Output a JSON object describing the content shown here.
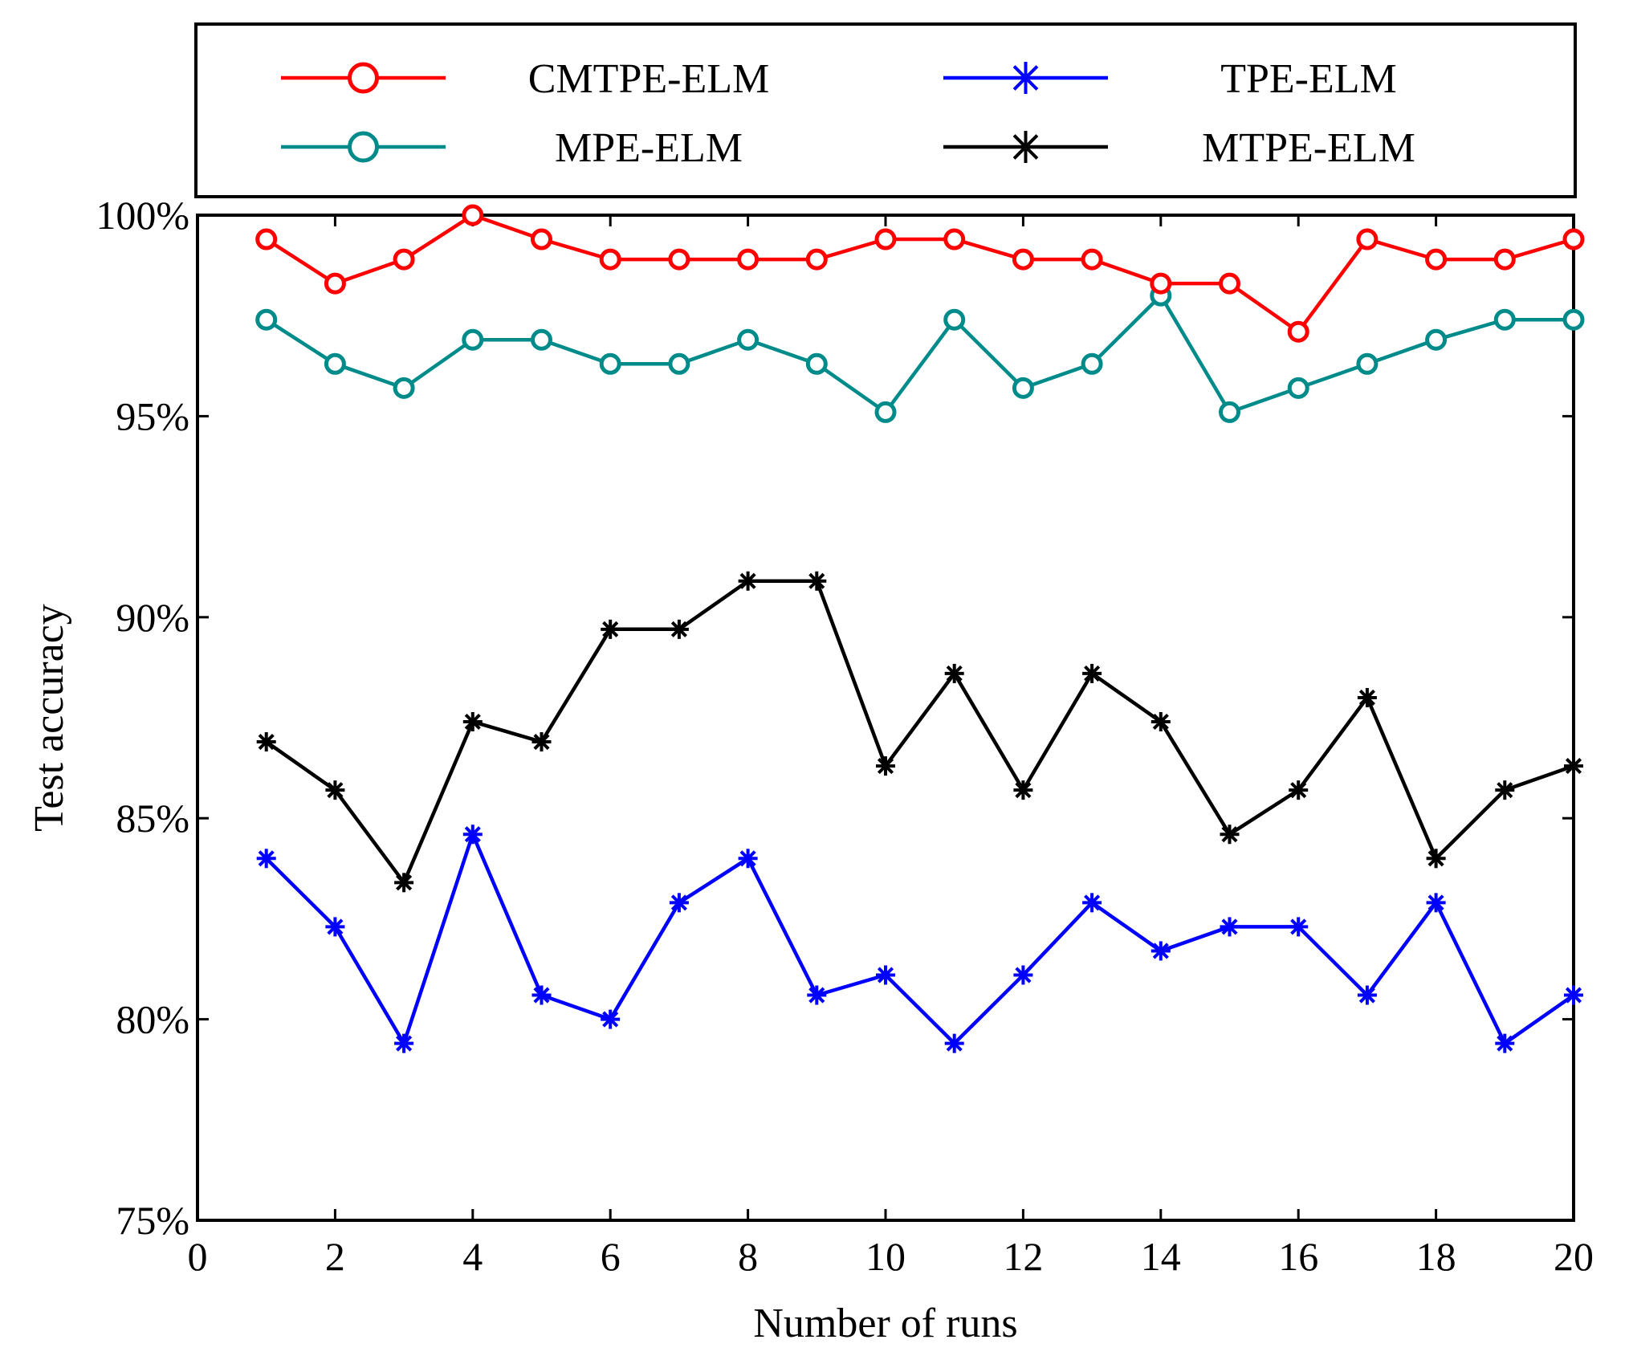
{
  "chart_data": {
    "type": "line",
    "title": "",
    "xlabel": "Number of runs",
    "ylabel": "Test accuracy",
    "xlim": [
      0,
      20
    ],
    "ylim": [
      75,
      100
    ],
    "xticks": [
      0,
      2,
      4,
      6,
      8,
      10,
      12,
      14,
      16,
      18,
      20
    ],
    "yticks": [
      75,
      80,
      85,
      90,
      95,
      100
    ],
    "xtick_labels": [
      "0",
      "2",
      "4",
      "6",
      "8",
      "10",
      "12",
      "14",
      "16",
      "18",
      "20"
    ],
    "ytick_labels": [
      "75%",
      "80%",
      "85%",
      "90%",
      "95%",
      "100%"
    ],
    "grid": false,
    "legend_position": "top",
    "x": [
      1,
      2,
      3,
      4,
      5,
      6,
      7,
      8,
      9,
      10,
      11,
      12,
      13,
      14,
      15,
      16,
      17,
      18,
      19,
      20
    ],
    "series": [
      {
        "name": "CMTPE-ELM",
        "color": "#ff0000",
        "marker": "circle",
        "values": [
          99.4,
          98.3,
          98.9,
          100.0,
          99.4,
          98.9,
          98.9,
          98.9,
          98.9,
          99.4,
          99.4,
          98.9,
          98.9,
          98.3,
          98.3,
          97.1,
          99.4,
          98.9,
          98.9,
          99.4
        ]
      },
      {
        "name": "TPE-ELM",
        "color": "#0000ff",
        "marker": "asterisk",
        "values": [
          84.0,
          82.3,
          79.4,
          84.6,
          80.6,
          80.0,
          82.9,
          84.0,
          80.6,
          81.1,
          79.4,
          81.1,
          82.9,
          81.7,
          82.3,
          82.3,
          80.6,
          82.9,
          79.4,
          80.6
        ]
      },
      {
        "name": "MPE-ELM",
        "color": "#008b8b",
        "marker": "circle",
        "values": [
          97.4,
          96.3,
          95.7,
          96.9,
          96.9,
          96.3,
          96.3,
          96.9,
          96.3,
          95.1,
          97.4,
          95.7,
          96.3,
          98.0,
          95.1,
          95.7,
          96.3,
          96.9,
          97.4,
          97.4
        ]
      },
      {
        "name": "MTPE-ELM",
        "color": "#000000",
        "marker": "asterisk",
        "values": [
          86.9,
          85.7,
          83.4,
          87.4,
          86.9,
          89.7,
          89.7,
          90.9,
          90.9,
          86.3,
          88.6,
          85.7,
          88.6,
          87.4,
          84.6,
          85.7,
          88.0,
          84.0,
          85.7,
          86.3
        ]
      }
    ]
  }
}
